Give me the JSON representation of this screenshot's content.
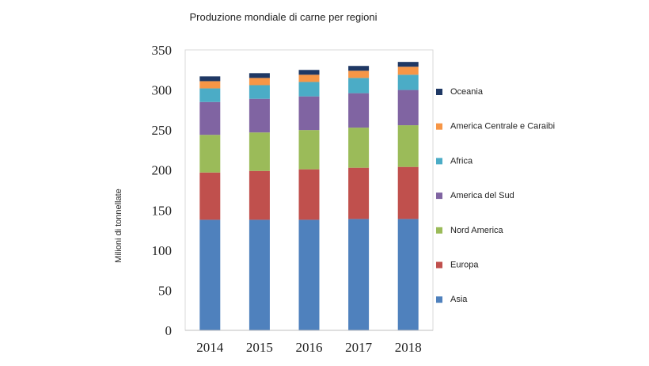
{
  "chart_data": {
    "type": "bar",
    "stacked": true,
    "title": "Produzione mondiale di carne per regioni",
    "xlabel": "",
    "ylabel": "Milioni di tonnellate",
    "ylim": [
      0,
      350
    ],
    "yticks": [
      0,
      50,
      100,
      150,
      200,
      250,
      300,
      350
    ],
    "categories": [
      "2014",
      "2015",
      "2016",
      "2017",
      "2018"
    ],
    "series": [
      {
        "name": "Asia",
        "color": "#4f81bd",
        "values": [
          138,
          138,
          138,
          139,
          139
        ]
      },
      {
        "name": "Europa",
        "color": "#c0504d",
        "values": [
          59,
          61,
          63,
          64,
          65
        ]
      },
      {
        "name": "Nord America",
        "color": "#9bbb59",
        "values": [
          47,
          48,
          49,
          50,
          52
        ]
      },
      {
        "name": "America del Sud",
        "color": "#8064a2",
        "values": [
          41,
          42,
          42,
          43,
          44
        ]
      },
      {
        "name": "Africa",
        "color": "#4bacc6",
        "values": [
          17,
          17,
          18,
          19,
          19
        ]
      },
      {
        "name": "America Centrale e Caraibi",
        "color": "#f79646",
        "values": [
          9,
          9,
          9,
          9,
          10
        ]
      },
      {
        "name": "Oceania",
        "color": "#1f3864",
        "values": [
          6,
          6,
          6,
          6,
          6
        ]
      }
    ],
    "legend_position": "right",
    "legend_order": "reverse"
  }
}
